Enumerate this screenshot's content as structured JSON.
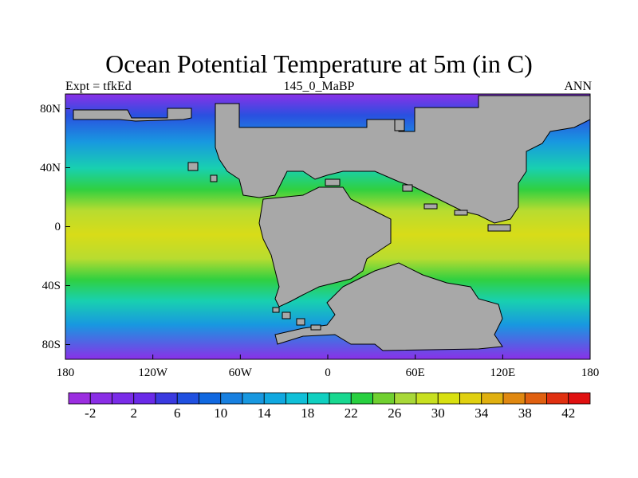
{
  "title": "Ocean Potential Temperature at 5m (in C)",
  "left_label": "Expt = tfkEd",
  "center_label": "145_0_MaBP",
  "right_label": "ANN",
  "x_ticks": [
    "180",
    "120W",
    "60W",
    "0",
    "60E",
    "120E",
    "180"
  ],
  "y_ticks": [
    "80N",
    "40N",
    "0",
    "40S",
    "80S"
  ],
  "colorbar": {
    "labels": [
      "-2",
      "2",
      "6",
      "10",
      "14",
      "18",
      "22",
      "26",
      "30",
      "34",
      "38",
      "42"
    ],
    "colors": [
      "#9b2ee0",
      "#8a2ee6",
      "#7a2ce8",
      "#6a2ae8",
      "#3a3ae0",
      "#2050e0",
      "#1068e0",
      "#1880e0",
      "#1898e0",
      "#10a8e0",
      "#10c0d8",
      "#10d0c0",
      "#18d890",
      "#28d040",
      "#70d030",
      "#a8d838",
      "#c8e020",
      "#d8e010",
      "#e0d010",
      "#e0b010",
      "#e08810",
      "#e06010",
      "#e03010",
      "#e01010"
    ]
  },
  "map_colors": {
    "land": "#a8a8a8",
    "polar": "#8a30e8",
    "subpolar": "#2a50e0",
    "cool": "#1898e0",
    "temperate": "#18d0b0",
    "warm": "#30d040",
    "tropical": "#b8dc30",
    "equatorial": "#d8dc18"
  }
}
